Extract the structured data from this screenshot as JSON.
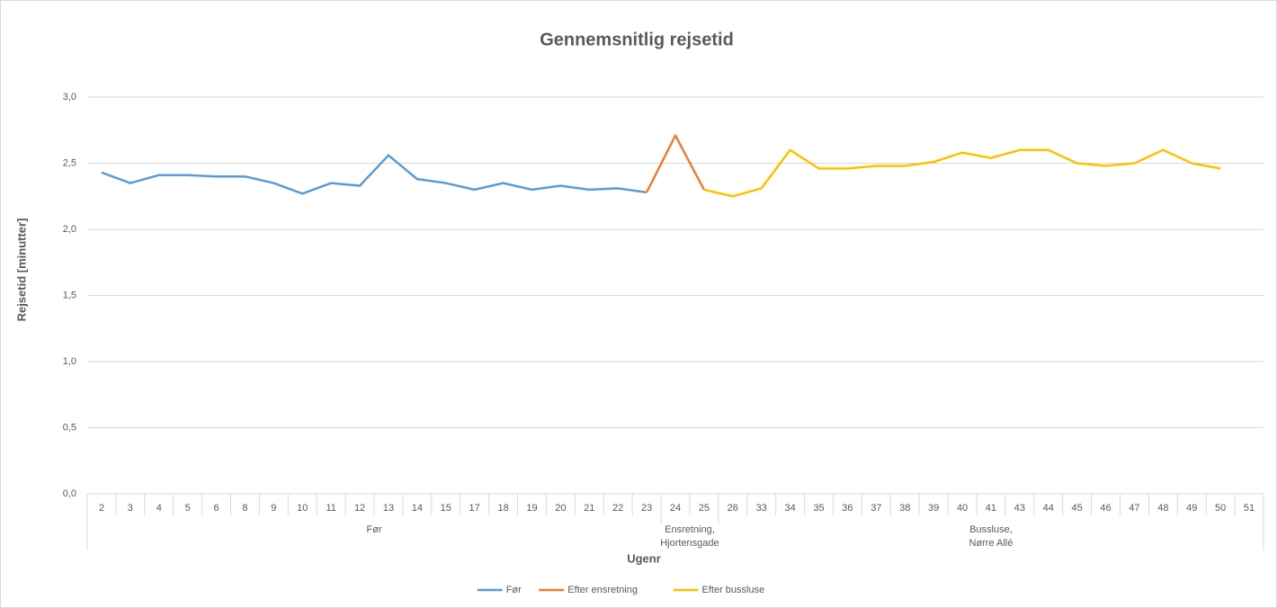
{
  "chart_data": {
    "type": "line",
    "title": "Gennemsnitlig rejsetid",
    "x_label": "Ugenr",
    "y_label": "Rejsetid [minutter]",
    "groups": [
      {
        "label": [
          "Før"
        ],
        "categories": [
          "2",
          "3",
          "4",
          "5",
          "6",
          "8",
          "9",
          "10",
          "11",
          "12",
          "13",
          "14",
          "15",
          "17",
          "18",
          "19",
          "20",
          "21",
          "22",
          "23"
        ]
      },
      {
        "label": [
          "Ensretning,",
          "Hjortensgade"
        ],
        "categories": [
          "24",
          "25"
        ]
      },
      {
        "label": [
          "Bussluse,",
          "Nørre Allé"
        ],
        "categories": [
          "26",
          "33",
          "34",
          "35",
          "36",
          "37",
          "38",
          "39",
          "40",
          "41",
          "43",
          "44",
          "45",
          "46",
          "47",
          "48",
          "49",
          "50",
          "51"
        ]
      }
    ],
    "series": [
      {
        "name": "Før",
        "color": "#5b9bd5",
        "values": [
          2.43,
          2.35,
          2.41,
          2.41,
          2.4,
          2.4,
          2.35,
          2.27,
          2.35,
          2.33,
          2.56,
          2.38,
          2.35,
          2.3,
          2.35,
          2.3,
          2.33,
          2.3,
          2.31,
          2.28,
          null,
          null,
          null,
          null,
          null,
          null,
          null,
          null,
          null,
          null,
          null,
          null,
          null,
          null,
          null,
          null,
          null,
          null,
          null,
          null,
          null
        ]
      },
      {
        "name": "Efter ensretning",
        "color": "#ed7d31",
        "values": [
          null,
          null,
          null,
          null,
          null,
          null,
          null,
          null,
          null,
          null,
          null,
          null,
          null,
          null,
          null,
          null,
          null,
          null,
          null,
          2.28,
          2.71,
          2.3,
          null,
          null,
          null,
          null,
          null,
          null,
          null,
          null,
          null,
          null,
          null,
          null,
          null,
          null,
          null,
          null,
          null,
          null,
          null
        ]
      },
      {
        "name": "Efter bussluse",
        "color": "#ffc000",
        "values": [
          null,
          null,
          null,
          null,
          null,
          null,
          null,
          null,
          null,
          null,
          null,
          null,
          null,
          null,
          null,
          null,
          null,
          null,
          null,
          null,
          null,
          2.3,
          2.25,
          2.31,
          2.6,
          2.46,
          2.46,
          2.48,
          2.48,
          2.51,
          2.58,
          2.54,
          2.6,
          2.6,
          2.5,
          2.48,
          2.5,
          2.6,
          2.5,
          2.46,
          null
        ]
      }
    ],
    "ylim": [
      0,
      3
    ],
    "yticks": [
      {
        "value": 0,
        "label": "0,0"
      },
      {
        "value": 0.5,
        "label": "0,5"
      },
      {
        "value": 1,
        "label": "1,0"
      },
      {
        "value": 1.5,
        "label": "1,5"
      },
      {
        "value": 2,
        "label": "2,0"
      },
      {
        "value": 2.5,
        "label": "2,5"
      },
      {
        "value": 3,
        "label": "3,0"
      }
    ],
    "grid": true
  }
}
